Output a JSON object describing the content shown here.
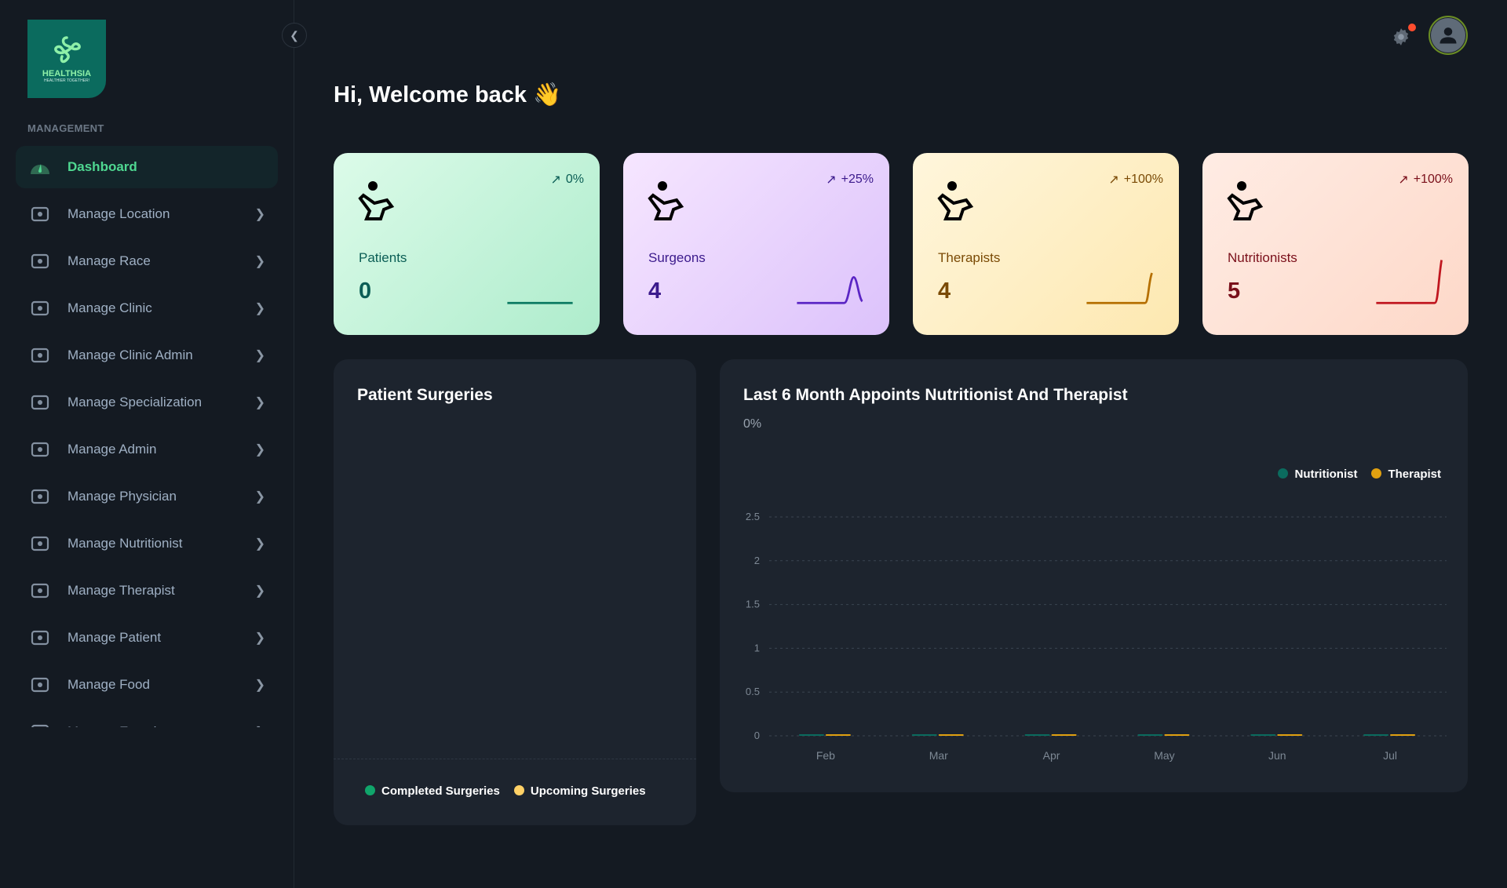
{
  "brand": {
    "name": "HEALTHSIA",
    "tagline": "HEALTHIER TOGETHER!"
  },
  "sidebar": {
    "section": "MANAGEMENT",
    "items": [
      {
        "label": "Dashboard",
        "icon": "gauge-icon",
        "active": true
      },
      {
        "label": "Manage Location",
        "icon": "map-pin-icon"
      },
      {
        "label": "Manage Race",
        "icon": "people-group-icon"
      },
      {
        "label": "Manage Clinic",
        "icon": "clinic-icon"
      },
      {
        "label": "Manage Clinic Admin",
        "icon": "medical-bag-icon"
      },
      {
        "label": "Manage Specialization",
        "icon": "shapes-icon"
      },
      {
        "label": "Manage Admin",
        "icon": "user-plus-icon"
      },
      {
        "label": "Manage Physician",
        "icon": "physician-icon"
      },
      {
        "label": "Manage Nutritionist",
        "icon": "nutritionist-icon"
      },
      {
        "label": "Manage Therapist",
        "icon": "therapist-icon"
      },
      {
        "label": "Manage Patient",
        "icon": "patient-chair-icon"
      },
      {
        "label": "Manage Food",
        "icon": "cart-icon"
      },
      {
        "label": "Manage Exercise",
        "icon": "exercise-icon"
      }
    ]
  },
  "header": {
    "greeting": "Hi, Welcome back 👋",
    "notification_color": "#ff4d2e"
  },
  "cards": [
    {
      "label": "Patients",
      "value": "0",
      "change": "0%",
      "color": "#0b5e55",
      "icon": "patient-chair-icon"
    },
    {
      "label": "Surgeons",
      "value": "4",
      "change": "+25%",
      "color": "#3b1a8c",
      "icon": "surgeon-icon"
    },
    {
      "label": "Therapists",
      "value": "4",
      "change": "+100%",
      "color": "#7a4a05",
      "icon": "therapist-icon"
    },
    {
      "label": "Nutritionists",
      "value": "5",
      "change": "+100%",
      "color": "#7a0f1a",
      "icon": "nutritionist-icon"
    }
  ],
  "surgeries": {
    "title": "Patient Surgeries",
    "legend": [
      {
        "name": "Completed Surgeries",
        "color": "#10a56b"
      },
      {
        "name": "Upcoming Surgeries",
        "color": "#ffd166"
      }
    ]
  },
  "chart_data": {
    "type": "bar",
    "title": "Last 6 Month Appoints Nutritionist And Therapist",
    "subtitle": "0%",
    "categories": [
      "Feb",
      "Mar",
      "Apr",
      "May",
      "Jun",
      "Jul"
    ],
    "series": [
      {
        "name": "Nutritionist",
        "color": "#0b6b5e",
        "values": [
          0,
          0,
          0,
          0,
          0,
          0
        ]
      },
      {
        "name": "Therapist",
        "color": "#e0a010",
        "values": [
          0,
          0,
          0,
          0,
          0,
          0
        ]
      }
    ],
    "yticks": [
      "0",
      "0.5",
      "1",
      "1.5",
      "2",
      "2.5"
    ],
    "ylim": [
      0,
      2.5
    ],
    "grid": true,
    "legend": "top-right"
  }
}
